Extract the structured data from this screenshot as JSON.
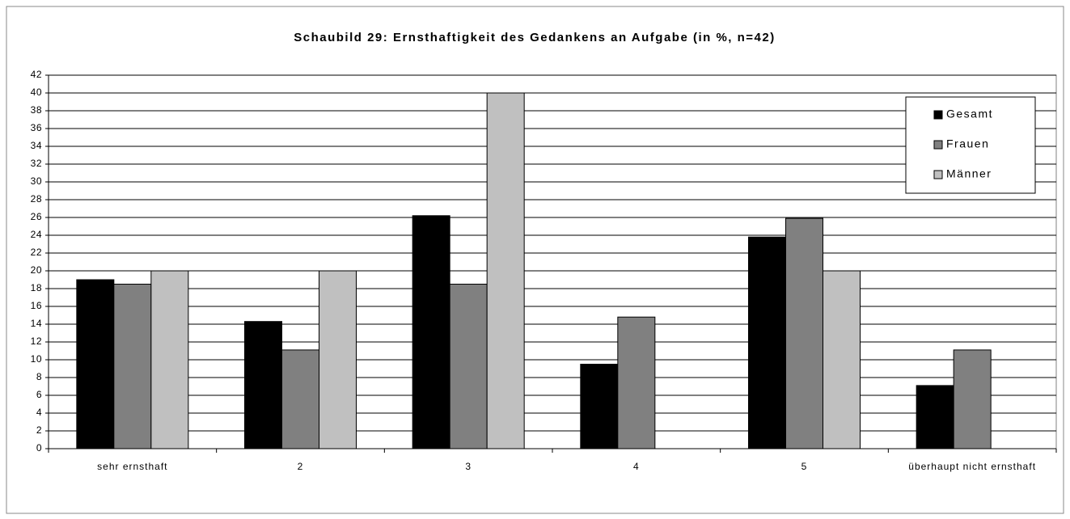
{
  "chart_data": {
    "type": "bar",
    "title": "Schaubild 29: Ernsthaftigkeit des Gedankens an Aufgabe (in %, n=42)",
    "categories": [
      "sehr ernsthaft",
      "2",
      "3",
      "4",
      "5",
      "überhaupt nicht ernsthaft"
    ],
    "series": [
      {
        "name": "Gesamt",
        "color": "#000000",
        "values": [
          19.0,
          14.3,
          26.2,
          9.5,
          23.8,
          7.1
        ]
      },
      {
        "name": "Frauen",
        "color": "#808080",
        "values": [
          18.5,
          11.1,
          18.5,
          14.8,
          25.9,
          11.1
        ]
      },
      {
        "name": "Männer",
        "color": "#c0c0c0",
        "values": [
          20,
          20,
          40,
          0,
          20,
          0
        ]
      }
    ],
    "ylim": [
      0,
      42
    ],
    "yticks": [
      0,
      2,
      4,
      6,
      8,
      10,
      12,
      14,
      16,
      18,
      20,
      22,
      24,
      26,
      28,
      30,
      32,
      34,
      36,
      38,
      40,
      42
    ],
    "grid": true,
    "legend": "upper right"
  }
}
